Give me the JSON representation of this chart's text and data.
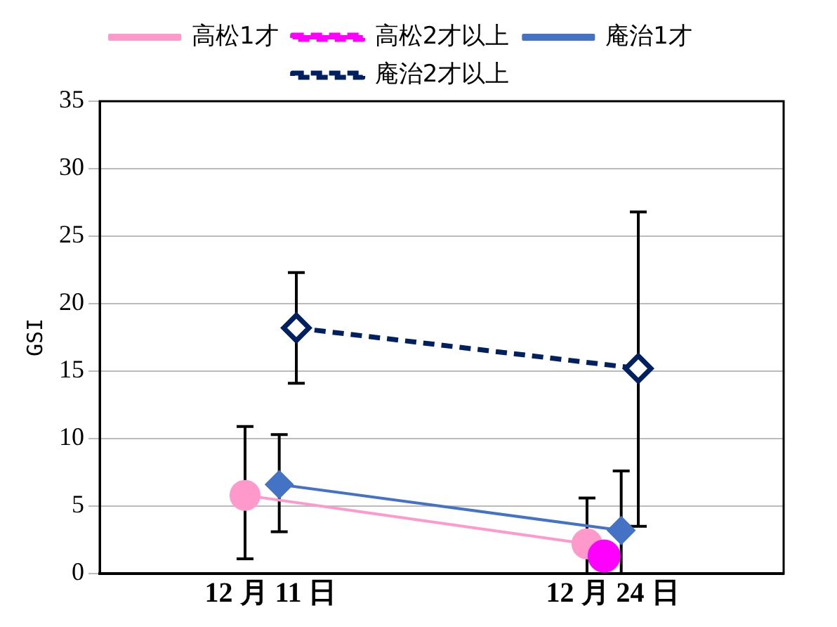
{
  "chart_data": {
    "type": "line",
    "ylabel": "GSI",
    "categories": [
      "12 月 11 日",
      "12 月 24 日"
    ],
    "ylim": [
      0,
      35
    ],
    "yticks": [
      0,
      5,
      10,
      15,
      20,
      25,
      30,
      35
    ],
    "grid": "y",
    "legend": "top",
    "series": [
      {
        "name": "高松1才",
        "color": "#ff99cc",
        "marker": "circle",
        "line_style": "solid",
        "values": [
          5.8,
          2.2
        ],
        "errors": [
          [
            1.1,
            10.9
          ],
          [
            0,
            5.6
          ]
        ]
      },
      {
        "name": "高松2才以上",
        "color": "#ff00ff",
        "marker": "circle",
        "line_style": "dashed",
        "values": [
          null,
          1.3
        ]
      },
      {
        "name": "庵治1才",
        "color": "#4472c4",
        "marker": "diamond",
        "line_style": "solid",
        "values": [
          6.6,
          3.2
        ],
        "errors": [
          [
            3.1,
            10.3
          ],
          [
            0,
            7.6
          ]
        ]
      },
      {
        "name": "庵治2才以上",
        "color": "#002060",
        "marker": "diamond-open",
        "line_style": "dashed",
        "values": [
          18.2,
          15.2
        ],
        "errors": [
          [
            14.1,
            22.3
          ],
          [
            3.5,
            26.8
          ]
        ]
      }
    ]
  }
}
